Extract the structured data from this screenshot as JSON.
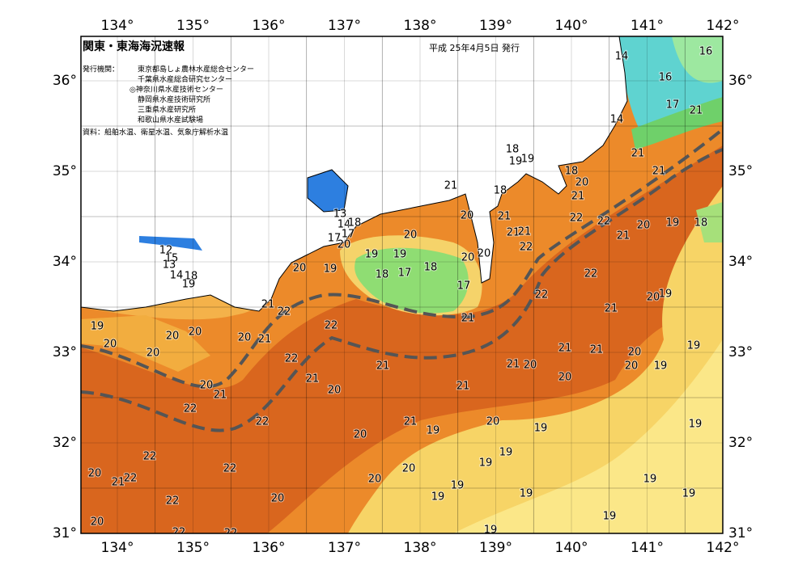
{
  "header": {
    "title": "関東・東海海況速報",
    "date": "平成 25年4月5日 発行"
  },
  "issuer": {
    "label": "発行機関：",
    "orgs": [
      "東京都島しょ農林水産総合センター",
      "千葉県水産総合研究センター",
      "◎神奈川県水産技術センター",
      "静岡県水産技術研究所",
      "三重県水産研究所",
      "和歌山県水産試験場"
    ]
  },
  "sources": "資料：船舶水温、衛星水温、気象庁解析水温",
  "lon_ticks": [
    "134°",
    "135°",
    "136°",
    "137°",
    "138°",
    "139°",
    "140°",
    "141°",
    "142°"
  ],
  "lat_ticks": [
    "36°",
    "35°",
    "34°",
    "33°",
    "32°",
    "31°"
  ],
  "contour_labels": [
    "16",
    "14",
    "16",
    "17",
    "21",
    "14",
    "21",
    "18",
    "19",
    "19",
    "18",
    "20",
    "21",
    "21",
    "18",
    "21",
    "20",
    "21",
    "22",
    "22",
    "20",
    "19",
    "18",
    "13",
    "14",
    "18",
    "17",
    "17",
    "20",
    "20",
    "21",
    "21",
    "21",
    "22",
    "12",
    "15",
    "13",
    "20",
    "19",
    "19",
    "19",
    "20",
    "20",
    "18",
    "17",
    "18",
    "14",
    "18",
    "19",
    "17",
    "22",
    "22",
    "19",
    "20",
    "21",
    "22",
    "21",
    "21",
    "19",
    "20",
    "20",
    "20",
    "21",
    "22",
    "20",
    "20",
    "22",
    "21",
    "21",
    "20",
    "19",
    "21",
    "21",
    "20",
    "20",
    "19",
    "21",
    "20",
    "21",
    "20",
    "21",
    "20",
    "22",
    "22",
    "21",
    "20",
    "19",
    "19",
    "19",
    "20",
    "22",
    "19",
    "19",
    "22",
    "20",
    "20",
    "21",
    "22",
    "20",
    "19",
    "19",
    "22",
    "20",
    "19",
    "19",
    "19",
    "20",
    "19",
    "22",
    "19",
    "22"
  ]
}
